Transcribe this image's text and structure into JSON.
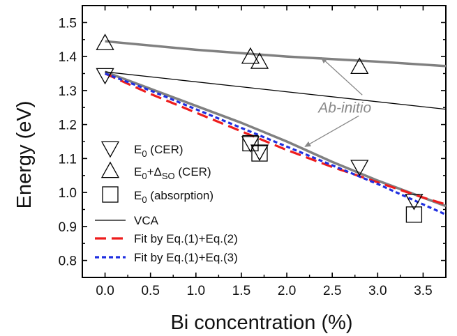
{
  "chart_data": {
    "type": "scatter",
    "xlabel": "Bi concentration (%)",
    "ylabel": "Energy (eV)",
    "xlim": [
      -0.25,
      3.75
    ],
    "ylim": [
      0.75,
      1.55
    ],
    "xticks": [
      0.0,
      0.5,
      1.0,
      1.5,
      2.0,
      2.5,
      3.0,
      3.5
    ],
    "xtick_labels": [
      "0.0",
      "0.5",
      "1.0",
      "1.5",
      "2.0",
      "2.5",
      "3.0",
      "3.5"
    ],
    "yticks": [
      0.8,
      0.9,
      1.0,
      1.1,
      1.2,
      1.3,
      1.4,
      1.5
    ],
    "ytick_labels": [
      "0.8",
      "0.9",
      "1.0",
      "1.1",
      "1.2",
      "1.3",
      "1.4",
      "1.5"
    ],
    "annotation": {
      "text": "Ab-initio",
      "x": 2.6,
      "y": 1.25
    },
    "legend_position": "lower-left",
    "scatter_series": [
      {
        "name": "E0 (CER)",
        "legend_label": "E",
        "legend_sub": "0",
        "legend_tail": " (CER)",
        "marker": "triangle-down",
        "x": [
          0.0,
          1.6,
          1.7,
          2.8,
          3.4
        ],
        "y": [
          1.345,
          1.145,
          1.12,
          1.075,
          0.975
        ]
      },
      {
        "name": "E0+ΔSO (CER)",
        "legend_label": "E",
        "legend_sub": "0",
        "legend_mid": "+Δ",
        "legend_sub2": "SO",
        "legend_tail": " (CER)",
        "marker": "triangle-up",
        "x": [
          0.0,
          1.6,
          1.7,
          2.8
        ],
        "y": [
          1.44,
          1.4,
          1.385,
          1.37
        ]
      },
      {
        "name": "E0 (absorption)",
        "legend_label": "E",
        "legend_sub": "0",
        "legend_tail": " (absorption)",
        "marker": "square",
        "x": [
          1.6,
          1.7,
          3.4
        ],
        "y": [
          1.145,
          1.115,
          0.935
        ]
      }
    ],
    "line_series": [
      {
        "name": "VCA",
        "legend_label": "VCA",
        "color": "#000000",
        "style": "solid",
        "x": [
          0.0,
          3.75
        ],
        "y": [
          1.355,
          1.245
        ]
      },
      {
        "name": "Fit by Eq.(1)+Eq.(2)",
        "legend_label": "Fit by Eq.(1)+Eq.(2)",
        "color": "#ee1c1c",
        "style": "dash",
        "x": [
          0.0,
          0.5,
          1.0,
          1.5,
          2.0,
          2.5,
          3.0,
          3.5,
          3.75
        ],
        "y": [
          1.35,
          1.29,
          1.235,
          1.18,
          1.125,
          1.075,
          1.03,
          0.985,
          0.965
        ]
      },
      {
        "name": "Fit by Eq.(1)+Eq.(3)",
        "legend_label": "Fit by Eq.(1)+Eq.(3)",
        "color": "#1f2fe0",
        "style": "dot",
        "x": [
          0.0,
          0.5,
          1.0,
          1.5,
          2.0,
          2.5,
          3.0,
          3.5,
          3.75
        ],
        "y": [
          1.35,
          1.3,
          1.245,
          1.19,
          1.135,
          1.08,
          1.025,
          0.965,
          0.935
        ]
      }
    ],
    "ab_initio_lines": [
      {
        "name": "Ab-initio upper",
        "color": "#808080",
        "x": [
          0.0,
          1.0,
          2.0,
          3.0,
          3.75
        ],
        "y": [
          1.445,
          1.42,
          1.4,
          1.385,
          1.372
        ]
      },
      {
        "name": "Ab-initio lower",
        "color": "#808080",
        "x": [
          0.0,
          0.5,
          1.0,
          1.5,
          2.0,
          2.5,
          3.0,
          3.5,
          3.75
        ],
        "y": [
          1.355,
          1.305,
          1.255,
          1.205,
          1.15,
          1.09,
          1.035,
          0.985,
          0.96
        ]
      }
    ]
  }
}
